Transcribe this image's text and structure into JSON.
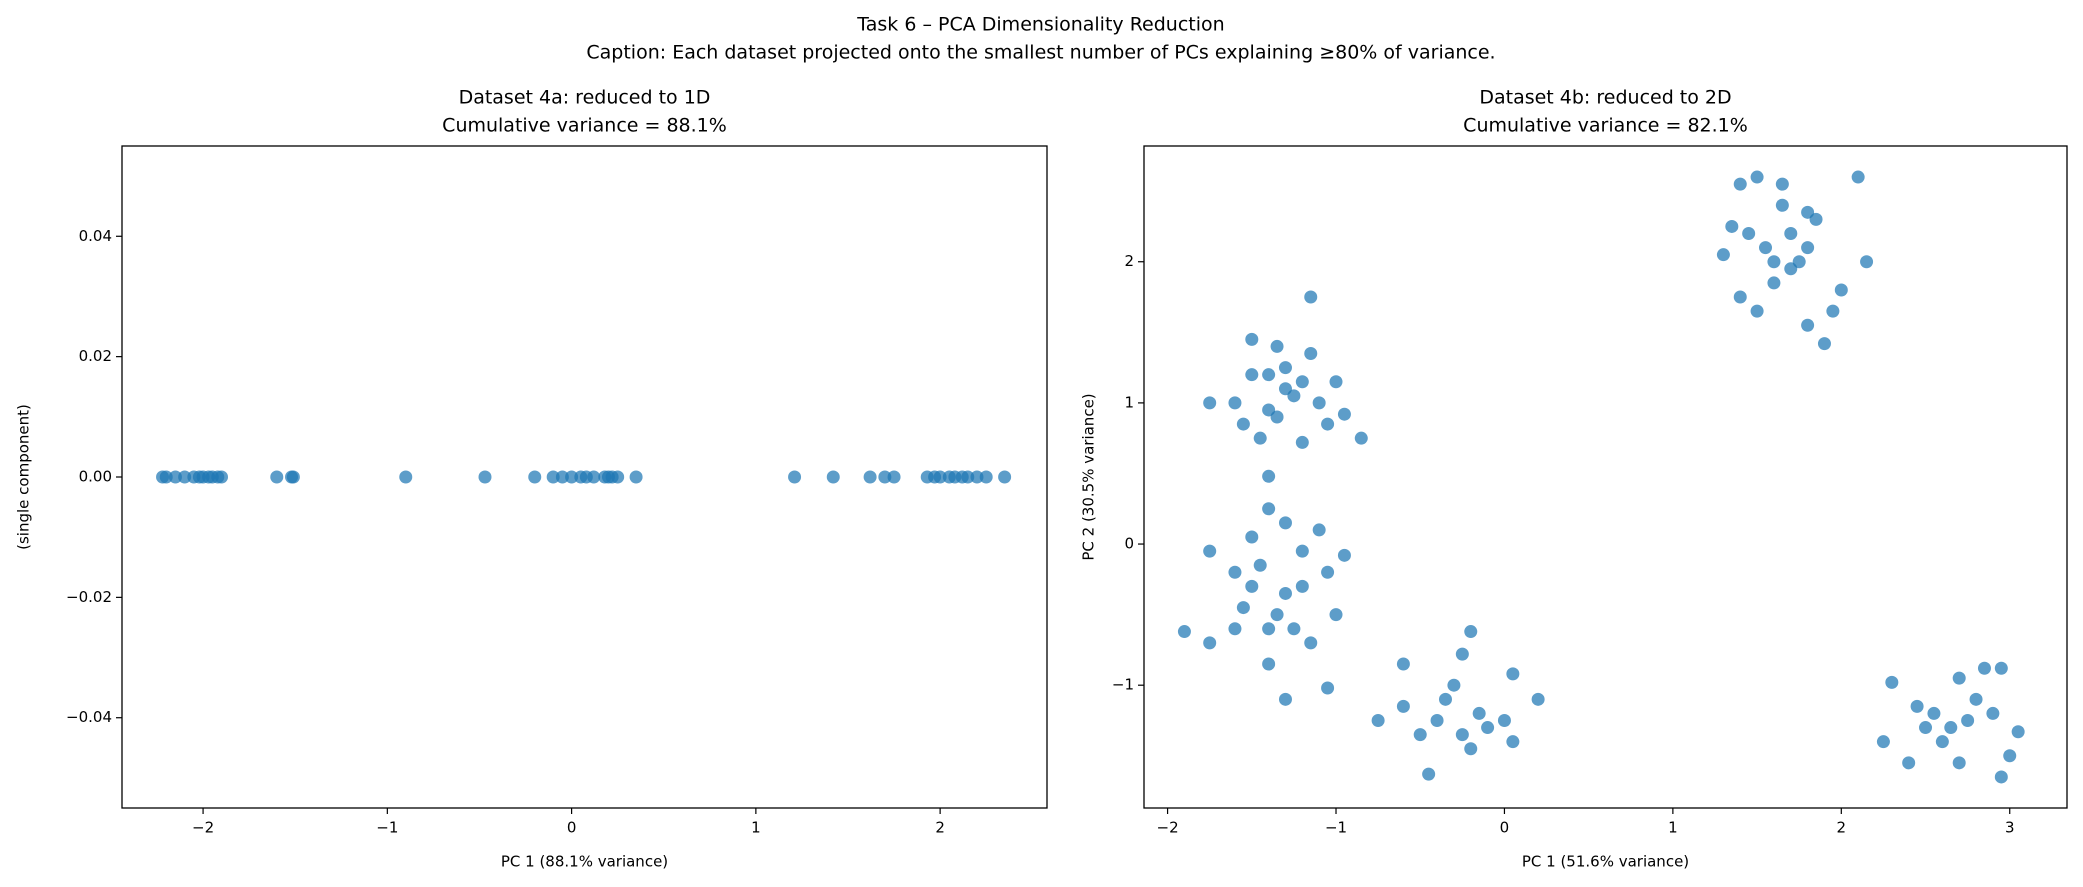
{
  "title": "Task 6 – PCA Dimensionality Reduction",
  "caption": "Caption: Each dataset projected onto the smallest number of PCs explaining ≥80% of variance.",
  "chart_data": [
    {
      "type": "scatter",
      "title": "Dataset 4a: reduced to 1D",
      "subtitle": "Cumulative variance = 88.1%",
      "x_label": "PC 1 (88.1% variance)",
      "y_label": "(single component)",
      "color": "#1f77b4",
      "x": [
        -2.22,
        -2.2,
        -2.15,
        -2.1,
        -2.05,
        -2.02,
        -2.0,
        -1.97,
        -1.95,
        -1.92,
        -1.9,
        -1.6,
        -1.52,
        -1.51,
        -0.9,
        -0.47,
        -0.2,
        -0.1,
        -0.05,
        0.0,
        0.05,
        0.08,
        0.12,
        0.18,
        0.2,
        0.22,
        0.25,
        0.35,
        1.21,
        1.42,
        1.62,
        1.7,
        1.75,
        1.93,
        1.97,
        2.0,
        2.05,
        2.08,
        2.12,
        2.15,
        2.2,
        2.25,
        2.35
      ],
      "y": [
        0,
        0,
        0,
        0,
        0,
        0,
        0,
        0,
        0,
        0,
        0,
        0,
        0,
        0,
        0,
        0,
        0,
        0,
        0,
        0,
        0,
        0,
        0,
        0,
        0,
        0,
        0,
        0,
        0,
        0,
        0,
        0,
        0,
        0,
        0,
        0,
        0,
        0,
        0,
        0,
        0,
        0,
        0
      ],
      "xlim": [
        -2.44,
        2.58
      ],
      "ylim": [
        -0.055,
        0.055
      ],
      "xticks": [
        {
          "value": -2,
          "label": "−2"
        },
        {
          "value": -1,
          "label": "−1"
        },
        0,
        1,
        2
      ],
      "yticks": [
        {
          "value": -0.04,
          "label": "−0.04"
        },
        {
          "value": -0.02,
          "label": "−0.02"
        },
        {
          "value": 0,
          "label": "0.00"
        },
        0.02,
        0.04
      ]
    },
    {
      "type": "scatter",
      "title": "Dataset 4b: reduced to 2D",
      "subtitle": "Cumulative variance = 82.1%",
      "x_label": "PC 1 (51.6% variance)",
      "y_label": "PC 2 (30.5% variance)",
      "color": "#1f77b4",
      "x": [
        1.3,
        1.4,
        1.5,
        1.65,
        1.8,
        2.1,
        2.15,
        1.95,
        1.9,
        1.8,
        1.6,
        1.5,
        1.4,
        1.45,
        1.55,
        1.7,
        1.75,
        1.85,
        2.0,
        1.35,
        1.6,
        1.7,
        1.8,
        1.65,
        -1.5,
        -1.35,
        -1.15,
        -1.6,
        -1.75,
        -1.55,
        -1.4,
        -1.3,
        -1.2,
        -1.1,
        -1.0,
        -0.95,
        -0.85,
        -1.2,
        -1.45,
        -1.3,
        -1.25,
        -1.4,
        -1.05,
        -1.5,
        -1.15,
        -1.35,
        -1.9,
        -1.75,
        -1.5,
        -1.4,
        -1.4,
        -1.3,
        -1.1,
        -0.95,
        -1.0,
        -1.05,
        -1.3,
        -1.4,
        -1.6,
        -1.75,
        -1.5,
        -1.35,
        -1.2,
        -1.25,
        -1.45,
        -1.15,
        -1.55,
        -1.3,
        -1.05,
        -1.6,
        -1.2,
        -1.4,
        -0.6,
        -0.75,
        -0.45,
        -0.25,
        -0.2,
        0.05,
        0.2,
        0.05,
        -0.2,
        -0.5,
        -0.35,
        -0.15,
        -0.4,
        -0.3,
        0.0,
        -0.6,
        -0.1,
        -0.25,
        2.3,
        2.25,
        2.4,
        2.55,
        2.7,
        2.85,
        2.95,
        3.05,
        3.0,
        2.95,
        2.7,
        2.6,
        2.75,
        2.65,
        2.8,
        2.5,
        2.9,
        2.45
      ],
      "y": [
        2.05,
        2.55,
        2.6,
        2.55,
        2.35,
        2.6,
        2.0,
        1.65,
        1.42,
        1.55,
        1.85,
        1.65,
        1.75,
        2.2,
        2.1,
        2.2,
        2.0,
        2.3,
        1.8,
        2.25,
        2.0,
        1.95,
        2.1,
        2.4,
        1.45,
        1.4,
        1.75,
        1.0,
        1.0,
        0.85,
        0.95,
        1.1,
        1.15,
        1.0,
        1.15,
        0.92,
        0.75,
        0.72,
        0.75,
        1.25,
        1.05,
        1.2,
        0.85,
        1.2,
        1.35,
        0.9,
        -0.62,
        -0.05,
        0.05,
        0.25,
        0.48,
        0.15,
        0.1,
        -0.08,
        -0.5,
        -1.02,
        -1.1,
        -0.85,
        -0.6,
        -0.7,
        -0.3,
        -0.5,
        -0.3,
        -0.6,
        -0.15,
        -0.7,
        -0.45,
        -0.35,
        -0.2,
        -0.2,
        -0.05,
        -0.6,
        -0.85,
        -1.25,
        -1.63,
        -0.78,
        -0.62,
        -0.92,
        -1.1,
        -1.4,
        -1.45,
        -1.35,
        -1.1,
        -1.2,
        -1.25,
        -1.0,
        -1.25,
        -1.15,
        -1.3,
        -1.35,
        -0.98,
        -1.4,
        -1.55,
        -1.2,
        -0.95,
        -0.88,
        -0.88,
        -1.33,
        -1.5,
        -1.65,
        -1.55,
        -1.4,
        -1.25,
        -1.3,
        -1.1,
        -1.3,
        -1.2,
        -1.15
      ],
      "xlim": [
        -2.14,
        3.34
      ],
      "ylim": [
        -1.87,
        2.82
      ],
      "xticks": [
        {
          "value": -2,
          "label": "−2"
        },
        {
          "value": -1,
          "label": "−1"
        },
        0,
        1,
        2,
        3
      ],
      "yticks": [
        {
          "value": -1,
          "label": "−1"
        },
        0,
        1,
        2
      ]
    }
  ]
}
